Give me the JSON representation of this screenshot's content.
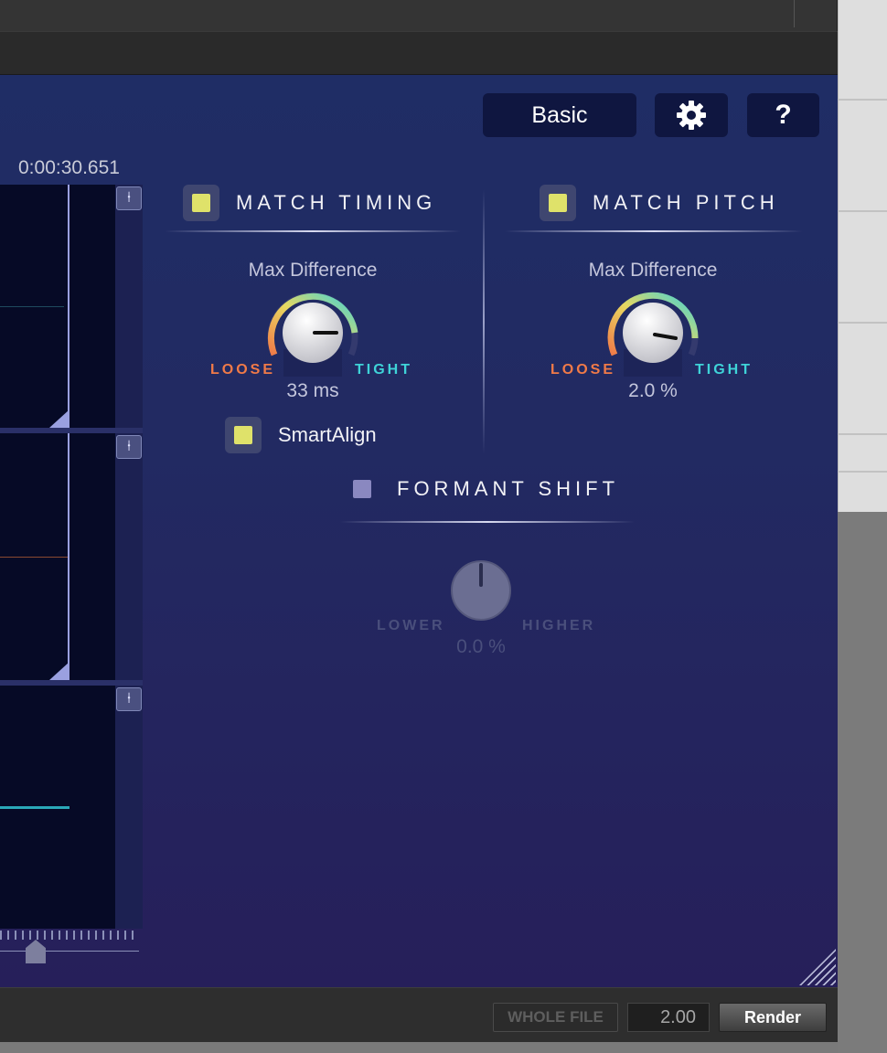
{
  "header": {
    "mode_button": "Basic",
    "settings_icon": "gear-icon",
    "help_button": "?"
  },
  "timeline": {
    "timecode": "0:00:30.651",
    "zoom_icon": "zoom-handle-icon"
  },
  "match_timing": {
    "title": "MATCH TIMING",
    "enabled": true,
    "knob_label": "Max Difference",
    "low_label": "LOOSE",
    "high_label": "TIGHT",
    "value": "33 ms",
    "smartalign_label": "SmartAlign",
    "smartalign_enabled": true
  },
  "match_pitch": {
    "title": "MATCH PITCH",
    "enabled": true,
    "knob_label": "Max Difference",
    "low_label": "LOOSE",
    "high_label": "TIGHT",
    "value": "2.0 %"
  },
  "formant_shift": {
    "title": "FORMANT SHIFT",
    "enabled": false,
    "low_label": "LOWER",
    "high_label": "HIGHER",
    "value": "0.0 %"
  },
  "footer": {
    "whole_file": "WHOLE FILE",
    "value": "2.00",
    "render": "Render"
  },
  "colors": {
    "accent_loose": "#f07a48",
    "accent_tight": "#3fd3d8",
    "checkbox_on": "#dfe26a",
    "panel_bg": "#222a62"
  }
}
